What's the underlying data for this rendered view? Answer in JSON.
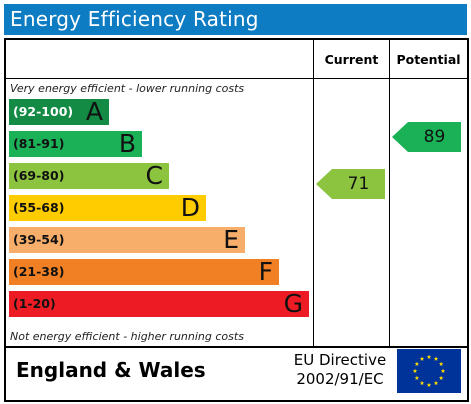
{
  "title": "Energy Efficiency Rating",
  "columns": {
    "current": "Current",
    "potential": "Potential"
  },
  "notes": {
    "top": "Very energy efficient - lower running costs",
    "bottom": "Not energy efficient - higher running costs"
  },
  "bands": [
    {
      "range": "(92-100)",
      "letter": "A",
      "color": "#138b44",
      "range_color": "#ffffff"
    },
    {
      "range": "(81-91)",
      "letter": "B",
      "color": "#1bb157",
      "range_color": "#111111"
    },
    {
      "range": "(69-80)",
      "letter": "C",
      "color": "#8cc43f",
      "range_color": "#111111"
    },
    {
      "range": "(55-68)",
      "letter": "D",
      "color": "#ffcc00",
      "range_color": "#111111"
    },
    {
      "range": "(39-54)",
      "letter": "E",
      "color": "#f6ae6a",
      "range_color": "#111111"
    },
    {
      "range": "(21-38)",
      "letter": "F",
      "color": "#f18024",
      "range_color": "#111111"
    },
    {
      "range": "(1-20)",
      "letter": "G",
      "color": "#ed1c24",
      "range_color": "#111111"
    }
  ],
  "current": {
    "value": "71",
    "color": "#8cc43f"
  },
  "potential": {
    "value": "89",
    "color": "#1bb157"
  },
  "footer": {
    "country": "England & Wales",
    "directive_line1": "EU Directive",
    "directive_line2": "2002/91/EC",
    "flag": "eu-flag-icon",
    "flag_color": "#003399",
    "star_color": "#ffdd00"
  }
}
